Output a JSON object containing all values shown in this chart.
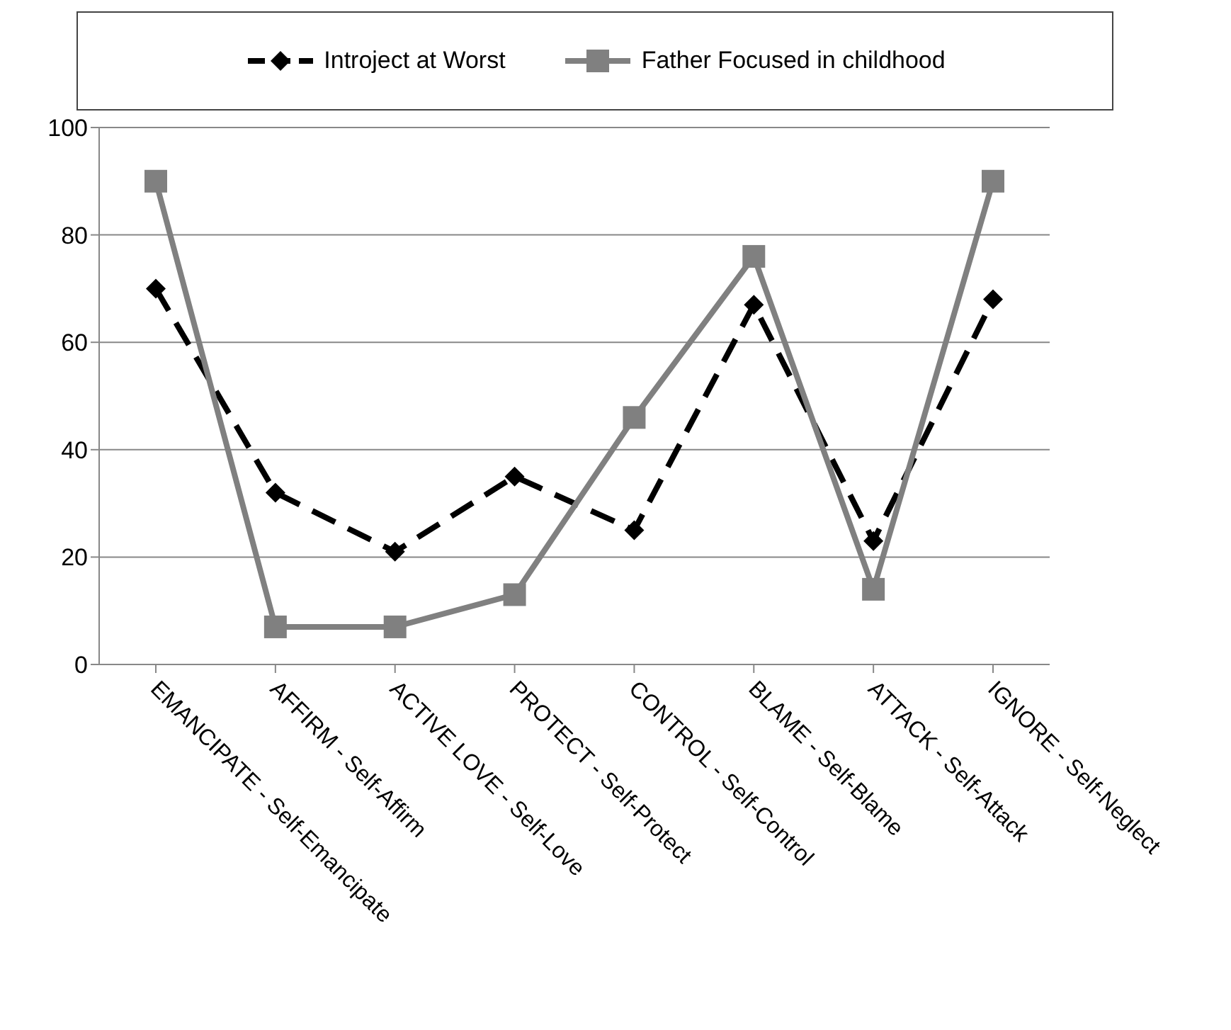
{
  "chart_data": {
    "type": "line",
    "categories": [
      "EMANCIPATE - Self-Emancipate",
      "AFFIRM - Self-Affirm",
      "ACTIVE LOVE - Self-Love",
      "PROTECT - Self-Protect",
      "CONTROL - Self-Control",
      "BLAME - Self-Blame",
      "ATTACK - Self-Attack",
      "IGNORE - Self-Neglect"
    ],
    "series": [
      {
        "name": "Introject at Worst",
        "color": "#000000",
        "marker": "diamond",
        "line_style": "dashed",
        "values": [
          70,
          32,
          21,
          35,
          25,
          67,
          23,
          68
        ]
      },
      {
        "name": "Father Focused in childhood",
        "color": "#808080",
        "marker": "square",
        "line_style": "solid",
        "values": [
          90,
          7,
          7,
          13,
          46,
          76,
          14,
          90
        ]
      }
    ],
    "ylim": [
      0,
      100
    ],
    "yticks": [
      0,
      20,
      40,
      60,
      80,
      100
    ],
    "grid": "y",
    "legend": "top"
  }
}
